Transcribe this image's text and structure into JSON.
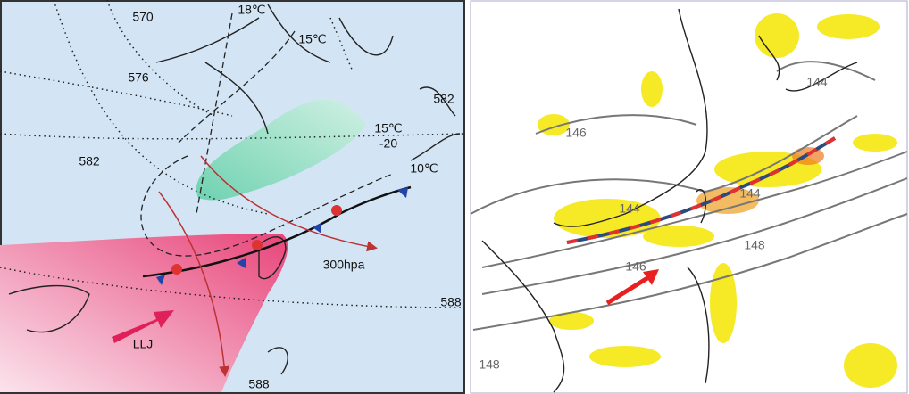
{
  "left_panel": {
    "labels": [
      "570",
      "18℃",
      "15℃",
      "576",
      "582",
      "15℃",
      "-20",
      "582",
      "10℃",
      "300hpa",
      "588",
      "LLJ",
      "588"
    ]
  },
  "right_panel": {
    "labels": [
      "146",
      "144",
      "144",
      "144",
      "148",
      "146",
      "148"
    ]
  }
}
